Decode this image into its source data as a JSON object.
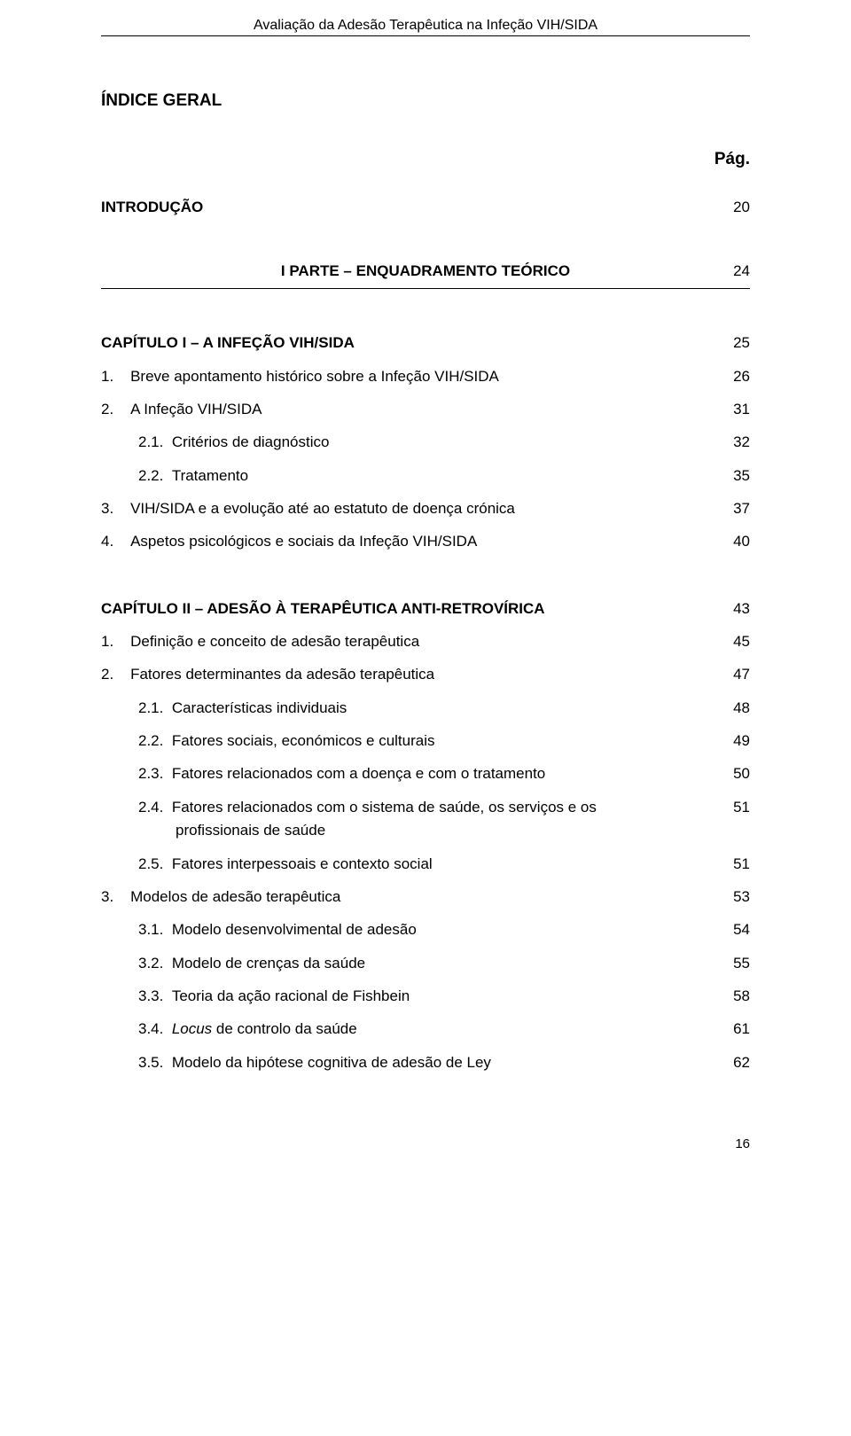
{
  "running_head": "Avaliação da Adesão Terapêutica na Infeção VIH/SIDA",
  "title_main": "ÍNDICE GERAL",
  "pag_label": "Pág.",
  "intro": {
    "label": "INTRODUÇÃO",
    "page": "20"
  },
  "parte1": {
    "label": "I PARTE – ENQUADRAMENTO TEÓRICO",
    "page": "24"
  },
  "cap1": {
    "heading": {
      "label": "CAPÍTULO I – A INFEÇÃO VIH/SIDA",
      "page": "25"
    },
    "items": [
      {
        "num": "1.",
        "label": "Breve apontamento histórico sobre a Infeção VIH/SIDA",
        "page": "26"
      },
      {
        "num": "2.",
        "label": "A Infeção VIH/SIDA",
        "page": "31"
      },
      {
        "num": "2.1.",
        "label": "Critérios de diagnóstico",
        "page": "32",
        "level": 2
      },
      {
        "num": "2.2.",
        "label": "Tratamento",
        "page": "35",
        "level": 2
      },
      {
        "num": "3.",
        "label": "VIH/SIDA e a evolução até ao estatuto de doença crónica",
        "page": "37"
      },
      {
        "num": "4.",
        "label": "Aspetos psicológicos e sociais da Infeção VIH/SIDA",
        "page": "40"
      }
    ]
  },
  "cap2": {
    "heading": {
      "label": "CAPÍTULO II – ADESÃO À TERAPÊUTICA ANTI-RETROVÍRICA",
      "page": "43"
    },
    "i1": {
      "num": "1.",
      "label": "Definição e conceito de adesão terapêutica",
      "page": "45"
    },
    "i2": {
      "num": "2.",
      "label": "Fatores determinantes da adesão terapêutica",
      "page": "47"
    },
    "i21": {
      "num": "2.1.",
      "label": "Características individuais",
      "page": "48"
    },
    "i22": {
      "num": "2.2.",
      "label": "Fatores sociais, económicos e culturais",
      "page": "49"
    },
    "i23": {
      "num": "2.3.",
      "label": "Fatores relacionados com a doença e com o tratamento",
      "page": "50"
    },
    "i24": {
      "num": "2.4.",
      "label_a": "Fatores relacionados com o sistema de saúde, os serviços e os",
      "label_b": "profissionais de saúde",
      "page": "51"
    },
    "i25": {
      "num": "2.5.",
      "label": "Fatores interpessoais e contexto social",
      "page": "51"
    },
    "i3": {
      "num": "3.",
      "label": "Modelos de adesão terapêutica",
      "page": "53"
    },
    "i31": {
      "num": "3.1.",
      "label": "Modelo desenvolvimental de adesão",
      "page": "54"
    },
    "i32": {
      "num": "3.2.",
      "label": "Modelo de crenças da saúde",
      "page": "55"
    },
    "i33": {
      "num": "3.3.",
      "label": "Teoria da ação racional de Fishbein",
      "page": "58"
    },
    "i34": {
      "num": "3.4.",
      "prefix": "Locus",
      "suffix": " de controlo da saúde",
      "page": "61"
    },
    "i35": {
      "num": "3.5.",
      "label": "Modelo da hipótese cognitiva de adesão de Ley",
      "page": "62"
    }
  },
  "footer_page": "16"
}
